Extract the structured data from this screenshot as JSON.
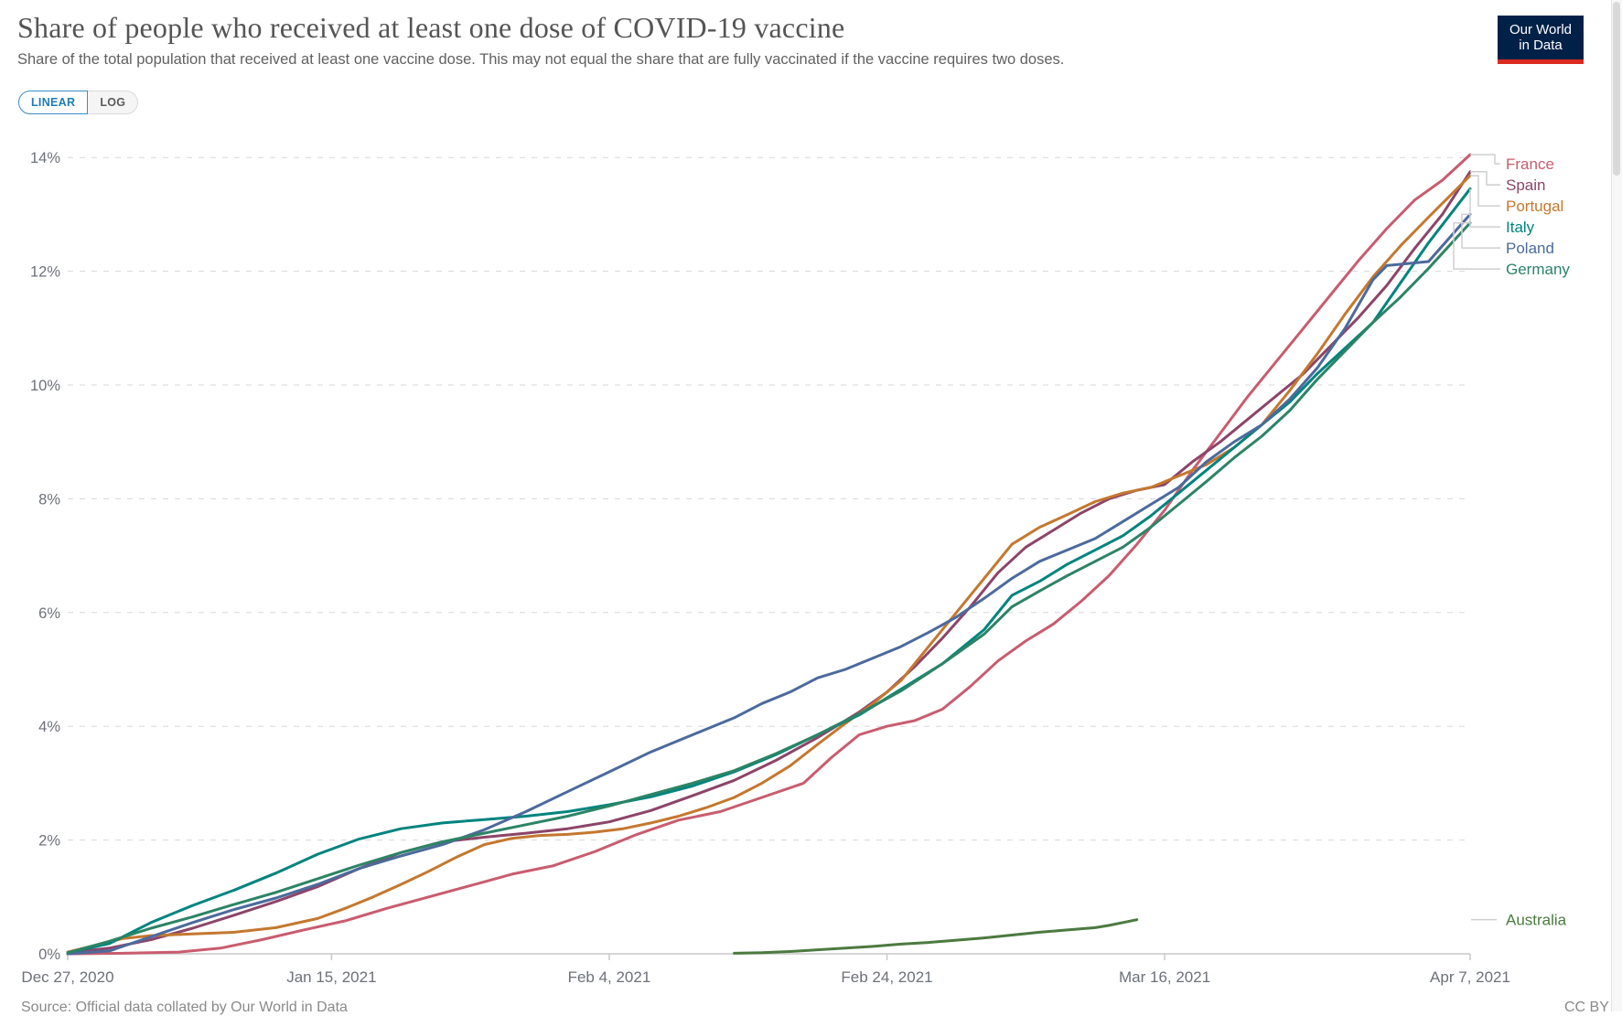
{
  "header": {
    "title": "Share of people who received at least one dose of COVID-19 vaccine",
    "subtitle": "Share of the total population that received at least one vaccine dose. This may not equal the share that are fully vaccinated if the vaccine requires two doses.",
    "logo": {
      "line1": "Our World",
      "line2": "in Data",
      "bg_color": "#002147",
      "bar_color": "#dc2a20"
    }
  },
  "controls": {
    "linear_label": "LINEAR",
    "log_label": "LOG",
    "selected": "LINEAR",
    "accent_color": "#1f7bb6"
  },
  "footer": {
    "source": "Source: Official data collated by Our World in Data",
    "license": "CC BY"
  },
  "chart_data": {
    "type": "line",
    "title": "Share of people who received at least one dose of COVID-19 vaccine",
    "xlabel": "",
    "ylabel": "",
    "y_unit": "%",
    "ylim": [
      0,
      14
    ],
    "x_range_days": [
      0,
      101
    ],
    "x_start_date": "Dec 27, 2020",
    "x_end_date": "Apr 7, 2021",
    "grid": "horizontal-dashed",
    "legend_position": "right",
    "y_ticks": [
      0,
      2,
      4,
      6,
      8,
      10,
      12,
      14
    ],
    "x_ticks": [
      {
        "day": 0,
        "label": "Dec 27, 2020"
      },
      {
        "day": 19,
        "label": "Jan 15, 2021"
      },
      {
        "day": 39,
        "label": "Feb 4, 2021"
      },
      {
        "day": 59,
        "label": "Feb 24, 2021"
      },
      {
        "day": 79,
        "label": "Mar 16, 2021"
      },
      {
        "day": 101,
        "label": "Apr 7, 2021"
      }
    ],
    "series": [
      {
        "name": "France",
        "color": "#c95c6f",
        "points": [
          [
            0,
            0
          ],
          [
            4,
            0.01
          ],
          [
            8,
            0.03
          ],
          [
            11,
            0.1
          ],
          [
            14,
            0.25
          ],
          [
            17,
            0.42
          ],
          [
            20,
            0.58
          ],
          [
            23,
            0.8
          ],
          [
            26,
            1.0
          ],
          [
            29,
            1.2
          ],
          [
            32,
            1.4
          ],
          [
            35,
            1.55
          ],
          [
            38,
            1.8
          ],
          [
            41,
            2.1
          ],
          [
            44,
            2.35
          ],
          [
            47,
            2.5
          ],
          [
            50,
            2.75
          ],
          [
            53,
            3.0
          ],
          [
            55,
            3.45
          ],
          [
            57,
            3.85
          ],
          [
            59,
            4.0
          ],
          [
            61,
            4.1
          ],
          [
            63,
            4.3
          ],
          [
            65,
            4.7
          ],
          [
            67,
            5.15
          ],
          [
            69,
            5.5
          ],
          [
            71,
            5.8
          ],
          [
            73,
            6.2
          ],
          [
            75,
            6.65
          ],
          [
            77,
            7.2
          ],
          [
            79,
            7.8
          ],
          [
            81,
            8.5
          ],
          [
            83,
            9.15
          ],
          [
            85,
            9.8
          ],
          [
            87,
            10.4
          ],
          [
            89,
            11.0
          ],
          [
            91,
            11.6
          ],
          [
            93,
            12.2
          ],
          [
            95,
            12.75
          ],
          [
            97,
            13.25
          ],
          [
            99,
            13.6
          ],
          [
            101,
            14.05
          ]
        ]
      },
      {
        "name": "Spain",
        "color": "#8c4569",
        "points": [
          [
            0,
            0.02
          ],
          [
            3,
            0.1
          ],
          [
            6,
            0.25
          ],
          [
            9,
            0.45
          ],
          [
            12,
            0.68
          ],
          [
            15,
            0.92
          ],
          [
            18,
            1.18
          ],
          [
            21,
            1.5
          ],
          [
            24,
            1.78
          ],
          [
            27,
            1.97
          ],
          [
            30,
            2.05
          ],
          [
            33,
            2.12
          ],
          [
            36,
            2.2
          ],
          [
            39,
            2.32
          ],
          [
            42,
            2.52
          ],
          [
            45,
            2.78
          ],
          [
            48,
            3.05
          ],
          [
            51,
            3.4
          ],
          [
            54,
            3.8
          ],
          [
            57,
            4.25
          ],
          [
            59,
            4.6
          ],
          [
            61,
            5.05
          ],
          [
            63,
            5.55
          ],
          [
            65,
            6.1
          ],
          [
            67,
            6.7
          ],
          [
            69,
            7.15
          ],
          [
            71,
            7.45
          ],
          [
            73,
            7.75
          ],
          [
            75,
            8.0
          ],
          [
            77,
            8.15
          ],
          [
            79,
            8.25
          ],
          [
            81,
            8.65
          ],
          [
            83,
            9.0
          ],
          [
            85,
            9.4
          ],
          [
            87,
            9.8
          ],
          [
            89,
            10.2
          ],
          [
            91,
            10.7
          ],
          [
            93,
            11.2
          ],
          [
            95,
            11.75
          ],
          [
            97,
            12.4
          ],
          [
            99,
            13.0
          ],
          [
            101,
            13.75
          ]
        ]
      },
      {
        "name": "Portugal",
        "color": "#c4782f",
        "points": [
          [
            0,
            0.03
          ],
          [
            2,
            0.15
          ],
          [
            4,
            0.27
          ],
          [
            6,
            0.32
          ],
          [
            9,
            0.35
          ],
          [
            12,
            0.38
          ],
          [
            15,
            0.46
          ],
          [
            18,
            0.62
          ],
          [
            20,
            0.8
          ],
          [
            22,
            1.0
          ],
          [
            24,
            1.22
          ],
          [
            26,
            1.45
          ],
          [
            28,
            1.7
          ],
          [
            30,
            1.92
          ],
          [
            32,
            2.03
          ],
          [
            34,
            2.08
          ],
          [
            36,
            2.1
          ],
          [
            38,
            2.14
          ],
          [
            40,
            2.2
          ],
          [
            42,
            2.3
          ],
          [
            44,
            2.42
          ],
          [
            46,
            2.57
          ],
          [
            48,
            2.75
          ],
          [
            50,
            3.0
          ],
          [
            52,
            3.3
          ],
          [
            54,
            3.68
          ],
          [
            56,
            4.05
          ],
          [
            58,
            4.4
          ],
          [
            60,
            4.8
          ],
          [
            62,
            5.4
          ],
          [
            64,
            6.0
          ],
          [
            66,
            6.6
          ],
          [
            68,
            7.2
          ],
          [
            70,
            7.5
          ],
          [
            72,
            7.72
          ],
          [
            74,
            7.95
          ],
          [
            76,
            8.1
          ],
          [
            78,
            8.2
          ],
          [
            80,
            8.4
          ],
          [
            82,
            8.6
          ],
          [
            84,
            8.9
          ],
          [
            86,
            9.3
          ],
          [
            88,
            9.9
          ],
          [
            90,
            10.55
          ],
          [
            92,
            11.25
          ],
          [
            94,
            11.9
          ],
          [
            96,
            12.45
          ],
          [
            98,
            12.95
          ],
          [
            101,
            13.68
          ]
        ]
      },
      {
        "name": "Italy",
        "color": "#00847e",
        "points": [
          [
            0,
            0.02
          ],
          [
            3,
            0.18
          ],
          [
            6,
            0.55
          ],
          [
            9,
            0.85
          ],
          [
            12,
            1.12
          ],
          [
            15,
            1.42
          ],
          [
            18,
            1.75
          ],
          [
            21,
            2.02
          ],
          [
            24,
            2.2
          ],
          [
            27,
            2.3
          ],
          [
            30,
            2.36
          ],
          [
            33,
            2.42
          ],
          [
            36,
            2.5
          ],
          [
            39,
            2.62
          ],
          [
            42,
            2.76
          ],
          [
            45,
            2.95
          ],
          [
            48,
            3.2
          ],
          [
            51,
            3.5
          ],
          [
            54,
            3.85
          ],
          [
            57,
            4.2
          ],
          [
            60,
            4.65
          ],
          [
            63,
            5.1
          ],
          [
            66,
            5.7
          ],
          [
            68,
            6.3
          ],
          [
            70,
            6.55
          ],
          [
            72,
            6.85
          ],
          [
            74,
            7.1
          ],
          [
            76,
            7.35
          ],
          [
            78,
            7.7
          ],
          [
            80,
            8.1
          ],
          [
            82,
            8.5
          ],
          [
            84,
            8.9
          ],
          [
            86,
            9.3
          ],
          [
            88,
            9.7
          ],
          [
            90,
            10.2
          ],
          [
            92,
            10.65
          ],
          [
            94,
            11.1
          ],
          [
            96,
            11.8
          ],
          [
            98,
            12.5
          ],
          [
            101,
            13.45
          ]
        ]
      },
      {
        "name": "Poland",
        "color": "#4c6a9c",
        "points": [
          [
            0,
            0
          ],
          [
            3,
            0.05
          ],
          [
            6,
            0.3
          ],
          [
            9,
            0.55
          ],
          [
            12,
            0.78
          ],
          [
            15,
            0.98
          ],
          [
            18,
            1.22
          ],
          [
            21,
            1.5
          ],
          [
            24,
            1.72
          ],
          [
            27,
            1.92
          ],
          [
            30,
            2.18
          ],
          [
            33,
            2.5
          ],
          [
            36,
            2.85
          ],
          [
            39,
            3.2
          ],
          [
            42,
            3.55
          ],
          [
            45,
            3.85
          ],
          [
            48,
            4.15
          ],
          [
            50,
            4.4
          ],
          [
            52,
            4.6
          ],
          [
            54,
            4.85
          ],
          [
            56,
            5.0
          ],
          [
            58,
            5.2
          ],
          [
            60,
            5.4
          ],
          [
            62,
            5.65
          ],
          [
            64,
            5.92
          ],
          [
            66,
            6.25
          ],
          [
            68,
            6.6
          ],
          [
            70,
            6.9
          ],
          [
            72,
            7.1
          ],
          [
            74,
            7.3
          ],
          [
            76,
            7.6
          ],
          [
            78,
            7.9
          ],
          [
            80,
            8.2
          ],
          [
            82,
            8.65
          ],
          [
            84,
            9.0
          ],
          [
            86,
            9.3
          ],
          [
            88,
            9.75
          ],
          [
            90,
            10.3
          ],
          [
            92,
            11.0
          ],
          [
            94,
            11.85
          ],
          [
            95,
            12.1
          ],
          [
            98,
            12.17
          ],
          [
            101,
            13.0
          ]
        ]
      },
      {
        "name": "Germany",
        "color": "#2c8465",
        "points": [
          [
            0,
            0.02
          ],
          [
            3,
            0.22
          ],
          [
            6,
            0.45
          ],
          [
            9,
            0.65
          ],
          [
            12,
            0.87
          ],
          [
            15,
            1.08
          ],
          [
            18,
            1.32
          ],
          [
            21,
            1.56
          ],
          [
            24,
            1.78
          ],
          [
            27,
            1.97
          ],
          [
            30,
            2.12
          ],
          [
            33,
            2.27
          ],
          [
            36,
            2.42
          ],
          [
            39,
            2.6
          ],
          [
            42,
            2.8
          ],
          [
            45,
            3.0
          ],
          [
            48,
            3.22
          ],
          [
            51,
            3.52
          ],
          [
            54,
            3.85
          ],
          [
            57,
            4.22
          ],
          [
            60,
            4.62
          ],
          [
            63,
            5.1
          ],
          [
            66,
            5.62
          ],
          [
            68,
            6.1
          ],
          [
            70,
            6.38
          ],
          [
            72,
            6.65
          ],
          [
            74,
            6.9
          ],
          [
            76,
            7.15
          ],
          [
            78,
            7.5
          ],
          [
            80,
            7.9
          ],
          [
            82,
            8.3
          ],
          [
            84,
            8.72
          ],
          [
            86,
            9.1
          ],
          [
            88,
            9.55
          ],
          [
            90,
            10.1
          ],
          [
            92,
            10.6
          ],
          [
            94,
            11.1
          ],
          [
            96,
            11.55
          ],
          [
            98,
            12.05
          ],
          [
            101,
            12.85
          ]
        ]
      },
      {
        "name": "Australia",
        "color": "#4c7a3f",
        "solo": true,
        "points": [
          [
            48,
            0.01
          ],
          [
            50,
            0.02
          ],
          [
            52,
            0.04
          ],
          [
            54,
            0.07
          ],
          [
            56,
            0.1
          ],
          [
            58,
            0.13
          ],
          [
            60,
            0.17
          ],
          [
            62,
            0.2
          ],
          [
            64,
            0.24
          ],
          [
            66,
            0.28
          ],
          [
            68,
            0.33
          ],
          [
            70,
            0.38
          ],
          [
            72,
            0.42
          ],
          [
            74,
            0.46
          ],
          [
            75,
            0.5
          ],
          [
            76,
            0.55
          ],
          [
            77,
            0.6
          ]
        ]
      }
    ]
  }
}
